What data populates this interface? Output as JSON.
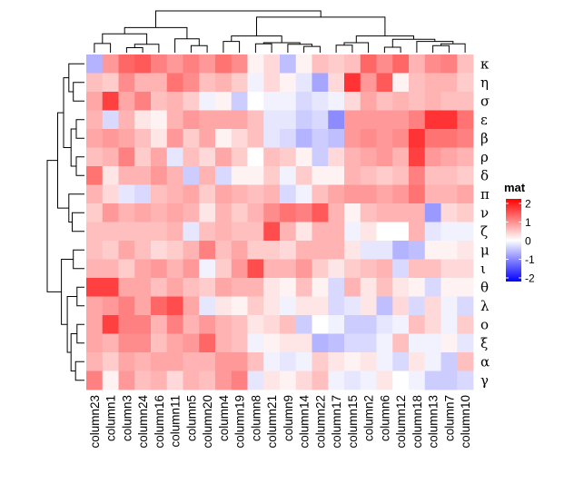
{
  "chart_data": {
    "type": "heatmap",
    "legend_title": "mat",
    "legend_ticks": [
      2,
      1,
      0,
      -1,
      -2
    ],
    "color_scale": {
      "min": -2,
      "mid": 0,
      "max": 2,
      "low": "#0000ff",
      "mid_color": "#ffffff",
      "high": "#ff0000"
    },
    "rows": [
      "κ",
      "η",
      "σ",
      "ε",
      "β",
      "ρ",
      "δ",
      "π",
      "ν",
      "ζ",
      "μ",
      "ι",
      "θ",
      "λ",
      "ο",
      "ξ",
      "α",
      "γ"
    ],
    "columns": [
      "column23",
      "column1",
      "column3",
      "column24",
      "column16",
      "column11",
      "column5",
      "column20",
      "column4",
      "column19",
      "column8",
      "column21",
      "column9",
      "column14",
      "column22",
      "column17",
      "column15",
      "column2",
      "column6",
      "column12",
      "column18",
      "column13",
      "column7",
      "column10"
    ],
    "values": [
      [
        -0.6,
        0.8,
        1.2,
        1.3,
        1.0,
        0.8,
        1.0,
        0.8,
        1.1,
        0.9,
        0.1,
        0.3,
        -0.5,
        0.1,
        0.5,
        0.4,
        0.5,
        1.2,
        0.9,
        1.2,
        0.6,
        0.9,
        1.0,
        0.5
      ],
      [
        0.5,
        0.4,
        0.9,
        0.6,
        0.6,
        1.1,
        0.9,
        0.5,
        0.6,
        0.4,
        -0.1,
        0.3,
        0.1,
        -0.2,
        -0.7,
        0.3,
        1.6,
        0.8,
        1.3,
        0.1,
        0.5,
        0.6,
        0.6,
        0.4
      ],
      [
        0.7,
        1.5,
        0.7,
        1.0,
        0.5,
        0.6,
        0.4,
        -0.1,
        0.1,
        -0.4,
        0.0,
        -0.1,
        -0.1,
        -0.3,
        -0.2,
        -0.1,
        0.3,
        0.7,
        0.5,
        0.6,
        0.5,
        0.6,
        0.5,
        0.5
      ],
      [
        0.6,
        -0.3,
        0.6,
        0.2,
        0.1,
        0.6,
        0.8,
        0.7,
        0.7,
        0.7,
        0.5,
        -0.2,
        -0.2,
        -0.4,
        -0.3,
        -0.9,
        0.8,
        0.8,
        0.8,
        0.8,
        1.0,
        1.6,
        1.6,
        1.1
      ],
      [
        0.7,
        0.8,
        0.7,
        0.5,
        0.2,
        0.8,
        0.4,
        0.7,
        0.1,
        0.3,
        0.5,
        -0.2,
        -0.3,
        -0.6,
        -0.4,
        -0.5,
        0.8,
        0.9,
        0.8,
        0.9,
        1.6,
        1.1,
        1.1,
        1.0
      ],
      [
        0.5,
        0.6,
        1.0,
        0.4,
        0.7,
        -0.2,
        0.5,
        0.3,
        0.7,
        0.4,
        0.0,
        0.5,
        0.4,
        0.1,
        -0.4,
        0.3,
        0.6,
        0.7,
        0.8,
        0.6,
        1.5,
        0.8,
        0.7,
        0.6
      ],
      [
        1.1,
        0.2,
        0.6,
        0.6,
        0.8,
        0.6,
        -0.4,
        0.6,
        -0.3,
        0.1,
        0.1,
        0.4,
        -0.1,
        0.4,
        0.1,
        0.1,
        0.6,
        0.5,
        0.4,
        0.5,
        1.0,
        0.5,
        0.5,
        0.4
      ],
      [
        0.6,
        0.3,
        -0.2,
        -0.3,
        0.5,
        0.6,
        0.7,
        0.4,
        0.7,
        0.6,
        0.5,
        0.6,
        -0.3,
        -0.1,
        0.5,
        0.7,
        0.8,
        0.8,
        0.7,
        0.8,
        1.1,
        0.6,
        0.6,
        0.7
      ],
      [
        0.4,
        0.8,
        0.6,
        0.7,
        0.6,
        0.7,
        0.6,
        0.2,
        0.6,
        0.4,
        0.6,
        0.9,
        1.1,
        1.0,
        1.3,
        0.6,
        0.1,
        0.5,
        0.6,
        0.6,
        0.6,
        -0.8,
        0.3,
        0.4
      ],
      [
        0.5,
        0.5,
        0.5,
        0.5,
        0.5,
        0.6,
        -0.2,
        0.5,
        0.6,
        0.5,
        0.5,
        1.4,
        0.6,
        0.2,
        0.6,
        0.6,
        -0.1,
        0.2,
        0.0,
        0.0,
        0.6,
        -0.2,
        -0.1,
        -0.1
      ],
      [
        0.5,
        0.4,
        0.7,
        0.5,
        0.3,
        0.4,
        0.6,
        1.0,
        0.5,
        0.7,
        0.4,
        0.4,
        0.3,
        0.6,
        0.6,
        0.6,
        0.2,
        -0.2,
        -0.2,
        -0.6,
        -0.5,
        0.1,
        0.1,
        0.2
      ],
      [
        0.6,
        0.6,
        0.4,
        0.7,
        0.8,
        0.6,
        0.8,
        -0.1,
        0.4,
        0.8,
        1.4,
        0.6,
        0.6,
        0.8,
        0.4,
        0.2,
        0.4,
        0.5,
        0.6,
        -0.3,
        0.5,
        0.5,
        0.3,
        0.3
      ],
      [
        1.5,
        1.5,
        0.7,
        0.7,
        0.5,
        0.7,
        0.5,
        0.4,
        0.7,
        0.6,
        0.6,
        0.2,
        0.1,
        0.5,
        0.1,
        -0.3,
        0.6,
        0.2,
        0.5,
        0.2,
        0.1,
        -0.3,
        0.1,
        0.1
      ],
      [
        0.7,
        0.8,
        1.0,
        0.7,
        1.2,
        1.4,
        0.7,
        -0.2,
        0.2,
        0.1,
        0.4,
        0.2,
        -0.1,
        0.2,
        0.2,
        -0.3,
        -0.2,
        0.2,
        -0.5,
        0.3,
        -0.3,
        0.3,
        -0.1,
        -0.3
      ],
      [
        0.7,
        1.5,
        1.0,
        1.0,
        0.6,
        1.0,
        0.6,
        0.8,
        0.6,
        0.5,
        0.2,
        0.3,
        0.5,
        -0.4,
        0.0,
        -0.1,
        -0.4,
        -0.4,
        -0.2,
        -0.1,
        0.5,
        0.3,
        -0.1,
        0.4
      ],
      [
        0.7,
        0.6,
        0.9,
        0.9,
        0.5,
        0.7,
        0.8,
        1.2,
        0.6,
        0.5,
        -0.1,
        0.1,
        0.2,
        0.2,
        -0.6,
        -0.5,
        -0.3,
        -0.3,
        -0.1,
        0.5,
        -0.1,
        -0.1,
        0.1,
        -0.2
      ],
      [
        0.6,
        0.4,
        0.7,
        0.6,
        0.7,
        0.7,
        0.6,
        0.6,
        0.8,
        0.8,
        0.5,
        -0.1,
        -0.2,
        -0.1,
        0.4,
        0.2,
        0.1,
        0.2,
        -0.1,
        -0.3,
        0.2,
        -0.1,
        -0.4,
        0.5
      ],
      [
        1.0,
        0.1,
        0.8,
        0.5,
        0.6,
        0.3,
        0.6,
        0.5,
        0.8,
        1.0,
        -0.2,
        0.2,
        0.1,
        0.3,
        0.5,
        -0.1,
        -0.2,
        -0.1,
        0.2,
        0.0,
        -0.1,
        -0.4,
        -0.4,
        -0.3
      ]
    ]
  }
}
